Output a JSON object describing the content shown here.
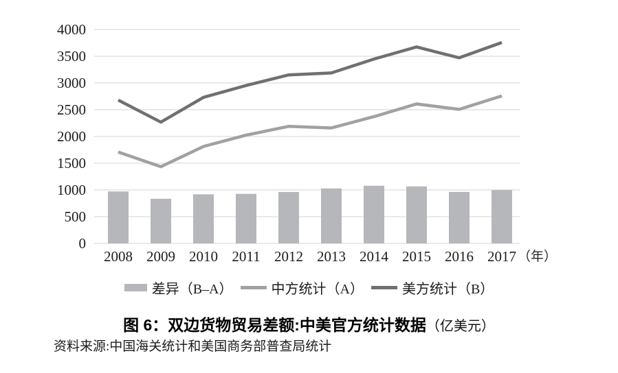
{
  "chart_data": {
    "type": "combo",
    "title": "图 6：双边货物贸易差额:中美官方统计数据（亿美元）",
    "x": [
      "2008",
      "2009",
      "2010",
      "2011",
      "2012",
      "2013",
      "2014",
      "2015",
      "2016",
      "2017"
    ],
    "x_axis_suffix": "（年）",
    "yticks": [
      0,
      500,
      1000,
      1500,
      2000,
      2500,
      3000,
      3500,
      4000
    ],
    "ylim": [
      0,
      4000
    ],
    "grid": true,
    "legend_position": "bottom",
    "series": [
      {
        "name": "差异（B–A）",
        "type": "bar",
        "color": "#b5b7ba",
        "values": [
          972,
          834,
          918,
          927,
          962,
          1028,
          1078,
          1065,
          963,
          998
        ]
      },
      {
        "name": "中方统计（A）",
        "type": "line",
        "color": "#9fa1a3",
        "values": [
          1708,
          1434,
          1813,
          2025,
          2189,
          2159,
          2370,
          2608,
          2507,
          2758
        ]
      },
      {
        "name": "美方统计（B）",
        "type": "line",
        "color": "#6f7072",
        "values": [
          2680,
          2268,
          2731,
          2952,
          3151,
          3187,
          3448,
          3673,
          3470,
          3756
        ]
      }
    ],
    "colors": {
      "grid": "#dcdcdc",
      "tick_text": "#1c1c1c"
    }
  },
  "caption": {
    "prefix": "图 6：",
    "main": "双边货物贸易差额:中美官方统计数据",
    "unit": "（亿美元）"
  },
  "source": "资料来源:中国海关统计和美国商务部普查局统计"
}
